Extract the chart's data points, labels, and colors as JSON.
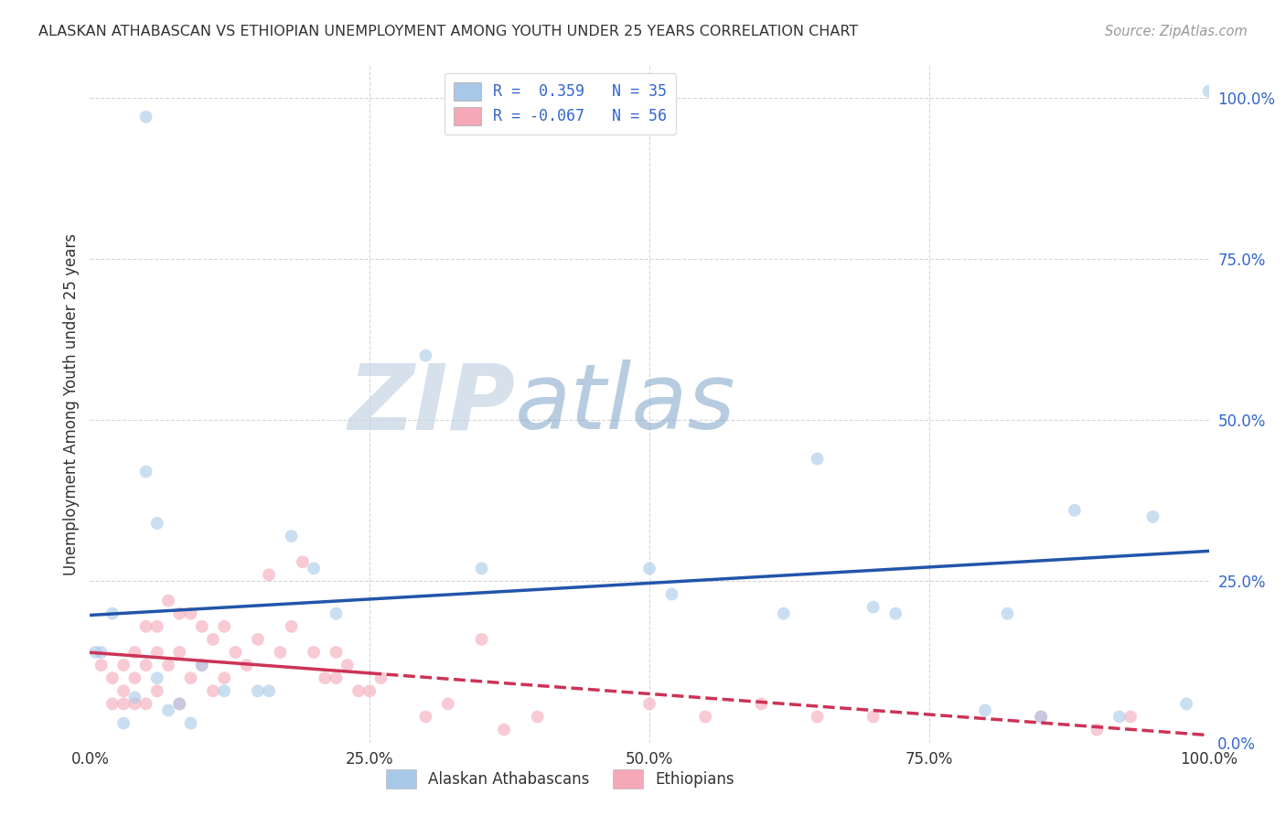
{
  "title": "ALASKAN ATHABASCAN VS ETHIOPIAN UNEMPLOYMENT AMONG YOUTH UNDER 25 YEARS CORRELATION CHART",
  "source": "Source: ZipAtlas.com",
  "ylabel": "Unemployment Among Youth under 25 years",
  "R_blue": 0.359,
  "N_blue": 35,
  "R_pink": -0.067,
  "N_pink": 56,
  "blue_color": "#A8C8E8",
  "pink_color": "#F4A8B8",
  "blue_line_color": "#2255AA",
  "pink_line_color": "#CC3355",
  "title_color": "#333333",
  "source_color": "#999999",
  "legend_R_color": "#3366CC",
  "legend_label_color": "#333333",
  "watermark_ZIP_color": "#C8D8E8",
  "watermark_atlas_color": "#88AABB",
  "blue_scatter_x": [
    0.005,
    0.01,
    0.02,
    0.03,
    0.04,
    0.05,
    0.06,
    0.06,
    0.07,
    0.08,
    0.09,
    0.1,
    0.12,
    0.15,
    0.16,
    0.18,
    0.2,
    0.22,
    0.35,
    0.5,
    0.52,
    0.62,
    0.65,
    0.7,
    0.72,
    0.8,
    0.82,
    0.85,
    0.88,
    0.92,
    0.95,
    0.98,
    0.3,
    0.05,
    1.0
  ],
  "blue_scatter_y": [
    0.14,
    0.14,
    0.2,
    0.03,
    0.07,
    0.42,
    0.34,
    0.1,
    0.05,
    0.06,
    0.03,
    0.12,
    0.08,
    0.08,
    0.08,
    0.32,
    0.27,
    0.2,
    0.27,
    0.27,
    0.23,
    0.2,
    0.44,
    0.21,
    0.2,
    0.05,
    0.2,
    0.04,
    0.36,
    0.04,
    0.35,
    0.06,
    0.6,
    0.97,
    1.01
  ],
  "pink_scatter_x": [
    0.01,
    0.02,
    0.02,
    0.03,
    0.03,
    0.03,
    0.04,
    0.04,
    0.04,
    0.05,
    0.05,
    0.05,
    0.06,
    0.06,
    0.06,
    0.07,
    0.07,
    0.08,
    0.08,
    0.08,
    0.09,
    0.09,
    0.1,
    0.1,
    0.11,
    0.11,
    0.12,
    0.12,
    0.13,
    0.14,
    0.15,
    0.16,
    0.17,
    0.18,
    0.19,
    0.2,
    0.21,
    0.22,
    0.22,
    0.23,
    0.24,
    0.25,
    0.26,
    0.3,
    0.32,
    0.35,
    0.37,
    0.4,
    0.5,
    0.55,
    0.6,
    0.65,
    0.7,
    0.85,
    0.9,
    0.93
  ],
  "pink_scatter_y": [
    0.12,
    0.1,
    0.06,
    0.12,
    0.08,
    0.06,
    0.14,
    0.1,
    0.06,
    0.18,
    0.12,
    0.06,
    0.18,
    0.14,
    0.08,
    0.22,
    0.12,
    0.2,
    0.14,
    0.06,
    0.2,
    0.1,
    0.18,
    0.12,
    0.16,
    0.08,
    0.18,
    0.1,
    0.14,
    0.12,
    0.16,
    0.26,
    0.14,
    0.18,
    0.28,
    0.14,
    0.1,
    0.1,
    0.14,
    0.12,
    0.08,
    0.08,
    0.1,
    0.04,
    0.06,
    0.16,
    0.02,
    0.04,
    0.06,
    0.04,
    0.06,
    0.04,
    0.04,
    0.04,
    0.02,
    0.04
  ],
  "xlim": [
    0.0,
    1.0
  ],
  "ylim": [
    0.0,
    1.05
  ],
  "xticks": [
    0.0,
    0.25,
    0.5,
    0.75,
    1.0
  ],
  "xtick_labels": [
    "0.0%",
    "25.0%",
    "50.0%",
    "75.0%",
    "100.0%"
  ],
  "ytick_labels_right": [
    "100.0%",
    "75.0%",
    "50.0%",
    "25.0%",
    "0.0%"
  ],
  "ytick_positions_right": [
    1.0,
    0.75,
    0.5,
    0.25,
    0.0
  ],
  "grid_color": "#CCCCCC",
  "fig_bg": "#FFFFFF",
  "ax_bg": "#FFFFFF",
  "scatter_size": 100,
  "scatter_alpha": 0.6,
  "line_width": 2.5
}
